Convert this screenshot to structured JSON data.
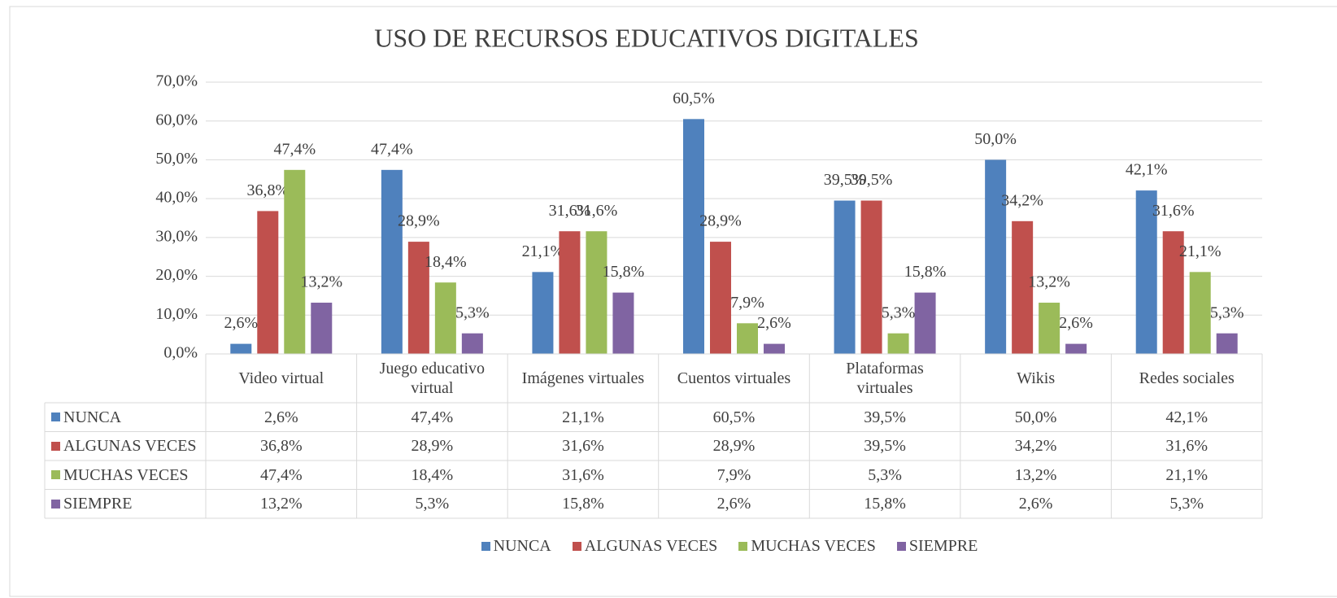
{
  "chart_data": {
    "type": "bar",
    "title": "USO DE RECURSOS EDUCATIVOS DIGITALES",
    "categories": [
      "Video virtual",
      "Juego educativo virtual",
      "Imágenes virtuales",
      "Cuentos virtuales",
      "Plataformas virtuales",
      "Wikis",
      "Redes sociales"
    ],
    "series": [
      {
        "name": "NUNCA",
        "color": "#4f81bd",
        "values": [
          2.6,
          47.4,
          21.1,
          60.5,
          39.5,
          50.0,
          42.1
        ],
        "value_labels": [
          "2,6%",
          "47,4%",
          "21,1%",
          "60,5%",
          "39,5%",
          "50,0%",
          "42,1%"
        ]
      },
      {
        "name": "ALGUNAS VECES",
        "color": "#c0504d",
        "values": [
          36.8,
          28.9,
          31.6,
          28.9,
          39.5,
          34.2,
          31.6
        ],
        "value_labels": [
          "36,8%",
          "28,9%",
          "31,6%",
          "28,9%",
          "39,5%",
          "34,2%",
          "31,6%"
        ]
      },
      {
        "name": "MUCHAS VECES",
        "color": "#9bbb59",
        "values": [
          47.4,
          18.4,
          31.6,
          7.9,
          5.3,
          13.2,
          21.1
        ],
        "value_labels": [
          "47,4%",
          "18,4%",
          "31,6%",
          "7,9%",
          "5,3%",
          "13,2%",
          "21,1%"
        ]
      },
      {
        "name": "SIEMPRE",
        "color": "#8064a2",
        "values": [
          13.2,
          5.3,
          15.8,
          2.6,
          15.8,
          2.6,
          5.3
        ],
        "value_labels": [
          "13,2%",
          "5,3%",
          "15,8%",
          "2,6%",
          "15,8%",
          "2,6%",
          "5,3%"
        ]
      }
    ],
    "ylim": [
      0,
      70
    ],
    "yticks": [
      {
        "value": 0,
        "label": "0,0%"
      },
      {
        "value": 10,
        "label": "10,0%"
      },
      {
        "value": 20,
        "label": "20,0%"
      },
      {
        "value": 30,
        "label": "30,0%"
      },
      {
        "value": 40,
        "label": "40,0%"
      },
      {
        "value": 50,
        "label": "50,0%"
      },
      {
        "value": 60,
        "label": "60,0%"
      },
      {
        "value": 70,
        "label": "70,0%"
      }
    ],
    "grid": true,
    "legend": "bottom",
    "data_table": true
  }
}
